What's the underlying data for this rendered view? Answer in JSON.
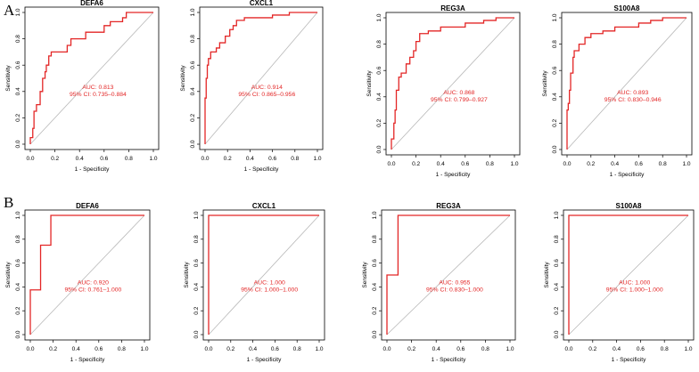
{
  "panels": [
    {
      "letter": "A"
    },
    {
      "letter": "B"
    }
  ],
  "common": {
    "xlabel": "1 - Specificity",
    "ylabel": "Sensitivity",
    "ticks": [
      "0.0",
      "0.2",
      "0.4",
      "0.6",
      "0.8",
      "1.0"
    ],
    "colors": {
      "roc": "#e32626",
      "diag": "#b8b8b8",
      "axis": "#000000",
      "text": "#e32626"
    }
  },
  "chart_data": [
    {
      "type": "line",
      "panel": "A",
      "title": "DEFA6",
      "auc_label": "AUC: 0.813",
      "ci_label": "95% CI: 0.735–0.884",
      "xlabel": "1 - Specificity",
      "ylabel": "Sensitivity",
      "xlim": [
        0,
        1
      ],
      "ylim": [
        0,
        1
      ],
      "roc": [
        [
          0,
          0
        ],
        [
          0,
          0.05
        ],
        [
          0.02,
          0.05
        ],
        [
          0.02,
          0.12
        ],
        [
          0.03,
          0.12
        ],
        [
          0.03,
          0.25
        ],
        [
          0.05,
          0.25
        ],
        [
          0.05,
          0.3
        ],
        [
          0.08,
          0.3
        ],
        [
          0.08,
          0.4
        ],
        [
          0.1,
          0.4
        ],
        [
          0.1,
          0.5
        ],
        [
          0.12,
          0.5
        ],
        [
          0.12,
          0.55
        ],
        [
          0.13,
          0.55
        ],
        [
          0.13,
          0.6
        ],
        [
          0.15,
          0.6
        ],
        [
          0.15,
          0.67
        ],
        [
          0.17,
          0.67
        ],
        [
          0.17,
          0.7
        ],
        [
          0.3,
          0.7
        ],
        [
          0.3,
          0.75
        ],
        [
          0.33,
          0.75
        ],
        [
          0.33,
          0.8
        ],
        [
          0.45,
          0.8
        ],
        [
          0.45,
          0.85
        ],
        [
          0.6,
          0.85
        ],
        [
          0.6,
          0.9
        ],
        [
          0.65,
          0.9
        ],
        [
          0.65,
          0.93
        ],
        [
          0.75,
          0.93
        ],
        [
          0.75,
          0.96
        ],
        [
          0.78,
          0.96
        ],
        [
          0.78,
          1
        ],
        [
          1,
          1
        ]
      ]
    },
    {
      "type": "line",
      "panel": "A",
      "title": "CXCL1",
      "auc_label": "AUC: 0.914",
      "ci_label": "95% CI: 0.865–0.956",
      "xlabel": "1 - Specificity",
      "ylabel": "Sensitivity",
      "xlim": [
        0,
        1
      ],
      "ylim": [
        0,
        1
      ],
      "roc": [
        [
          0,
          0
        ],
        [
          0,
          0.35
        ],
        [
          0.01,
          0.35
        ],
        [
          0.01,
          0.5
        ],
        [
          0.02,
          0.5
        ],
        [
          0.02,
          0.6
        ],
        [
          0.03,
          0.6
        ],
        [
          0.03,
          0.65
        ],
        [
          0.05,
          0.65
        ],
        [
          0.05,
          0.7
        ],
        [
          0.1,
          0.7
        ],
        [
          0.1,
          0.73
        ],
        [
          0.13,
          0.73
        ],
        [
          0.13,
          0.77
        ],
        [
          0.18,
          0.77
        ],
        [
          0.18,
          0.82
        ],
        [
          0.22,
          0.82
        ],
        [
          0.22,
          0.87
        ],
        [
          0.25,
          0.87
        ],
        [
          0.25,
          0.9
        ],
        [
          0.28,
          0.9
        ],
        [
          0.28,
          0.94
        ],
        [
          0.35,
          0.94
        ],
        [
          0.35,
          0.96
        ],
        [
          0.6,
          0.96
        ],
        [
          0.6,
          0.98
        ],
        [
          0.75,
          0.98
        ],
        [
          0.75,
          1
        ],
        [
          1,
          1
        ]
      ]
    },
    {
      "type": "line",
      "panel": "A",
      "title": "REG3A",
      "auc_label": "AUC: 0.868",
      "ci_label": "95% CI: 0.799–0.927",
      "xlabel": "1 - Specificity",
      "ylabel": "Sensitivity",
      "xlim": [
        0,
        1
      ],
      "ylim": [
        0,
        1
      ],
      "roc": [
        [
          0,
          0
        ],
        [
          0,
          0.08
        ],
        [
          0.02,
          0.08
        ],
        [
          0.02,
          0.2
        ],
        [
          0.03,
          0.2
        ],
        [
          0.03,
          0.3
        ],
        [
          0.04,
          0.3
        ],
        [
          0.04,
          0.45
        ],
        [
          0.06,
          0.45
        ],
        [
          0.06,
          0.55
        ],
        [
          0.08,
          0.55
        ],
        [
          0.08,
          0.58
        ],
        [
          0.12,
          0.58
        ],
        [
          0.12,
          0.65
        ],
        [
          0.15,
          0.65
        ],
        [
          0.15,
          0.7
        ],
        [
          0.18,
          0.7
        ],
        [
          0.18,
          0.75
        ],
        [
          0.2,
          0.75
        ],
        [
          0.2,
          0.82
        ],
        [
          0.23,
          0.82
        ],
        [
          0.23,
          0.88
        ],
        [
          0.3,
          0.88
        ],
        [
          0.3,
          0.9
        ],
        [
          0.4,
          0.9
        ],
        [
          0.4,
          0.93
        ],
        [
          0.6,
          0.93
        ],
        [
          0.6,
          0.96
        ],
        [
          0.75,
          0.96
        ],
        [
          0.75,
          0.98
        ],
        [
          0.85,
          0.98
        ],
        [
          0.85,
          1
        ],
        [
          1,
          1
        ]
      ]
    },
    {
      "type": "line",
      "panel": "A",
      "title": "S100A8",
      "auc_label": "AUC: 0.893",
      "ci_label": "95% CI: 0.830–0.946",
      "xlabel": "1 - Specificity",
      "ylabel": "Sensitivity",
      "xlim": [
        0,
        1
      ],
      "ylim": [
        0,
        1
      ],
      "roc": [
        [
          0,
          0
        ],
        [
          0,
          0.3
        ],
        [
          0.01,
          0.3
        ],
        [
          0.01,
          0.35
        ],
        [
          0.02,
          0.35
        ],
        [
          0.02,
          0.45
        ],
        [
          0.03,
          0.45
        ],
        [
          0.03,
          0.58
        ],
        [
          0.05,
          0.58
        ],
        [
          0.05,
          0.7
        ],
        [
          0.06,
          0.7
        ],
        [
          0.06,
          0.75
        ],
        [
          0.1,
          0.75
        ],
        [
          0.1,
          0.8
        ],
        [
          0.15,
          0.8
        ],
        [
          0.15,
          0.85
        ],
        [
          0.2,
          0.85
        ],
        [
          0.2,
          0.88
        ],
        [
          0.3,
          0.88
        ],
        [
          0.3,
          0.9
        ],
        [
          0.4,
          0.9
        ],
        [
          0.4,
          0.93
        ],
        [
          0.6,
          0.93
        ],
        [
          0.6,
          0.96
        ],
        [
          0.7,
          0.96
        ],
        [
          0.7,
          0.98
        ],
        [
          0.8,
          0.98
        ],
        [
          0.8,
          1
        ],
        [
          1,
          1
        ]
      ]
    },
    {
      "type": "line",
      "panel": "B",
      "title": "DEFA6",
      "auc_label": "AUC: 0.920",
      "ci_label": "95% CI: 0.761–1.000",
      "xlabel": "1 - Specificity",
      "ylabel": "Sensitivity",
      "xlim": [
        0,
        1
      ],
      "ylim": [
        0,
        1
      ],
      "roc": [
        [
          0,
          0
        ],
        [
          0,
          0.375
        ],
        [
          0.09,
          0.375
        ],
        [
          0.09,
          0.75
        ],
        [
          0.18,
          0.75
        ],
        [
          0.18,
          1
        ],
        [
          1,
          1
        ]
      ]
    },
    {
      "type": "line",
      "panel": "B",
      "title": "CXCL1",
      "auc_label": "AUC: 1.000",
      "ci_label": "95% CI: 1.000–1.000",
      "xlabel": "1 - Specificity",
      "ylabel": "Sensitivity",
      "xlim": [
        0,
        1
      ],
      "ylim": [
        0,
        1
      ],
      "roc": [
        [
          0,
          0
        ],
        [
          0,
          1
        ],
        [
          1,
          1
        ]
      ]
    },
    {
      "type": "line",
      "panel": "B",
      "title": "REG3A",
      "auc_label": "AUC: 0.955",
      "ci_label": "95% CI: 0.830–1.000",
      "xlabel": "1 - Specificity",
      "ylabel": "Sensitivity",
      "xlim": [
        0,
        1
      ],
      "ylim": [
        0,
        1
      ],
      "roc": [
        [
          0,
          0
        ],
        [
          0,
          0.5
        ],
        [
          0.09,
          0.5
        ],
        [
          0.09,
          1
        ],
        [
          1,
          1
        ]
      ]
    },
    {
      "type": "line",
      "panel": "B",
      "title": "S100A8",
      "auc_label": "AUC: 1.000",
      "ci_label": "95% CI: 1.000–1.000",
      "xlabel": "1 - Specificity",
      "ylabel": "Sensitivity",
      "xlim": [
        0,
        1
      ],
      "ylim": [
        0,
        1
      ],
      "roc": [
        [
          0,
          0
        ],
        [
          0,
          1
        ],
        [
          1,
          1
        ]
      ]
    }
  ]
}
